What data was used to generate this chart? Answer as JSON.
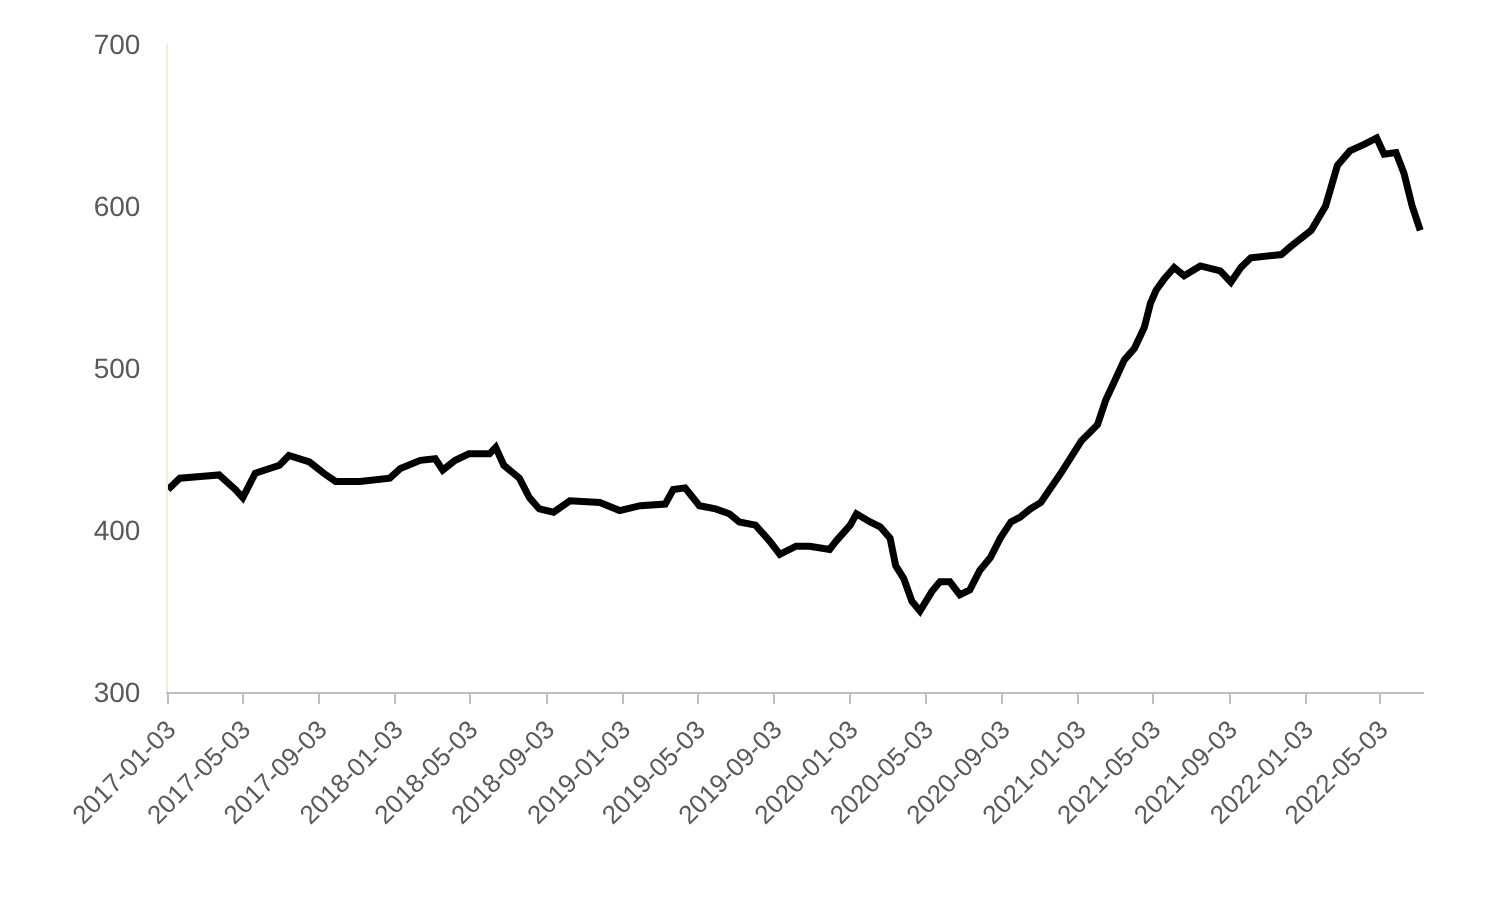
{
  "chart_data": {
    "type": "line",
    "color": "#000000",
    "line_style": "solid",
    "grid": false,
    "legend": false,
    "x": [
      "2017-01-03",
      "2017-01-22",
      "2017-02-24",
      "2017-03-26",
      "2017-04-21",
      "2017-05-03",
      "2017-05-23",
      "2017-07-01",
      "2017-07-16",
      "2017-08-18",
      "2017-09-10",
      "2017-09-29",
      "2017-11-07",
      "2017-12-25",
      "2018-01-11",
      "2018-02-12",
      "2018-03-08",
      "2018-03-20",
      "2018-04-09",
      "2018-05-01",
      "2018-06-03",
      "2018-06-13",
      "2018-06-26",
      "2018-07-21",
      "2018-08-06",
      "2018-08-22",
      "2018-09-14",
      "2018-10-10",
      "2018-11-27",
      "2018-12-29",
      "2019-01-31",
      "2019-03-12",
      "2019-03-25",
      "2019-04-13",
      "2019-05-06",
      "2019-06-01",
      "2019-06-23",
      "2019-07-09",
      "2019-08-04",
      "2019-08-27",
      "2019-09-12",
      "2019-10-08",
      "2019-10-30",
      "2019-12-01",
      "2019-12-11",
      "2020-01-03",
      "2020-01-13",
      "2020-02-04",
      "2020-02-20",
      "2020-03-07",
      "2020-03-16",
      "2020-03-29",
      "2020-04-11",
      "2020-04-24",
      "2020-05-13",
      "2020-05-26",
      "2020-06-11",
      "2020-06-27",
      "2020-07-13",
      "2020-07-29",
      "2020-08-15",
      "2020-08-31",
      "2020-09-17",
      "2020-10-02",
      "2020-10-18",
      "2020-11-04",
      "2020-12-06",
      "2021-01-08",
      "2021-02-03",
      "2021-02-16",
      "2021-02-28",
      "2021-03-18",
      "2021-04-03",
      "2021-04-19",
      "2021-04-29",
      "2021-05-08",
      "2021-05-21",
      "2021-06-06",
      "2021-06-22",
      "2021-07-18",
      "2021-08-19",
      "2021-09-05",
      "2021-09-21",
      "2021-10-07",
      "2021-11-25",
      "2021-12-10",
      "2022-01-12",
      "2022-02-04",
      "2022-02-23",
      "2022-03-15",
      "2022-04-07",
      "2022-04-27",
      "2022-05-09",
      "2022-05-28",
      "2022-06-10",
      "2022-06-23",
      "2022-07-06"
    ],
    "values": [
      425,
      432,
      433,
      434,
      425,
      420,
      435,
      440,
      446,
      442,
      435,
      430,
      430,
      432,
      438,
      443,
      444,
      437,
      443,
      447,
      447,
      451,
      440,
      432,
      420,
      413,
      411,
      418,
      417,
      412,
      415,
      416,
      425,
      426,
      415,
      413,
      410,
      405,
      403,
      393,
      385,
      390,
      390,
      388,
      393,
      403,
      410,
      405,
      402,
      395,
      378,
      370,
      356,
      350,
      362,
      368,
      368,
      360,
      363,
      375,
      383,
      395,
      405,
      408,
      413,
      417,
      435,
      455,
      465,
      480,
      490,
      505,
      512,
      525,
      540,
      548,
      555,
      562,
      557,
      563,
      560,
      553,
      562,
      568,
      570,
      575,
      585,
      600,
      625,
      634,
      638,
      642,
      632,
      633,
      620,
      600,
      585
    ],
    "xlim": [
      "2017-01-03",
      "2022-07-12"
    ],
    "xticks": [
      "2017-01-03",
      "2017-05-03",
      "2017-09-03",
      "2018-01-03",
      "2018-05-03",
      "2018-09-03",
      "2019-01-03",
      "2019-05-03",
      "2019-09-03",
      "2020-01-03",
      "2020-05-03",
      "2020-09-03",
      "2021-01-03",
      "2021-05-03",
      "2021-09-03",
      "2022-01-03",
      "2022-05-03"
    ],
    "ylim": [
      300,
      700
    ],
    "yticks": [
      300,
      400,
      500,
      600,
      700
    ]
  }
}
